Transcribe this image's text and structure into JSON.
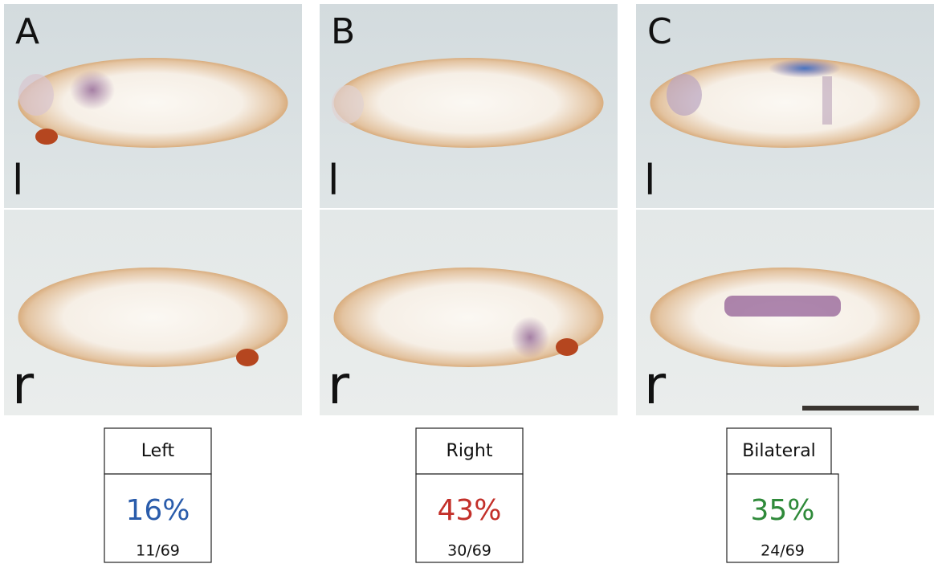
{
  "panels": [
    {
      "letter": "A",
      "top_label": "l",
      "bottom_label": "r",
      "category": "Left",
      "percent": "16%",
      "fraction": "11/69"
    },
    {
      "letter": "B",
      "top_label": "l",
      "bottom_label": "r",
      "category": "Right",
      "percent": "43%",
      "fraction": "30/69"
    },
    {
      "letter": "C",
      "top_label": "l",
      "bottom_label": "r",
      "category": "Bilateral",
      "percent": "35%",
      "fraction": "24/69"
    }
  ]
}
